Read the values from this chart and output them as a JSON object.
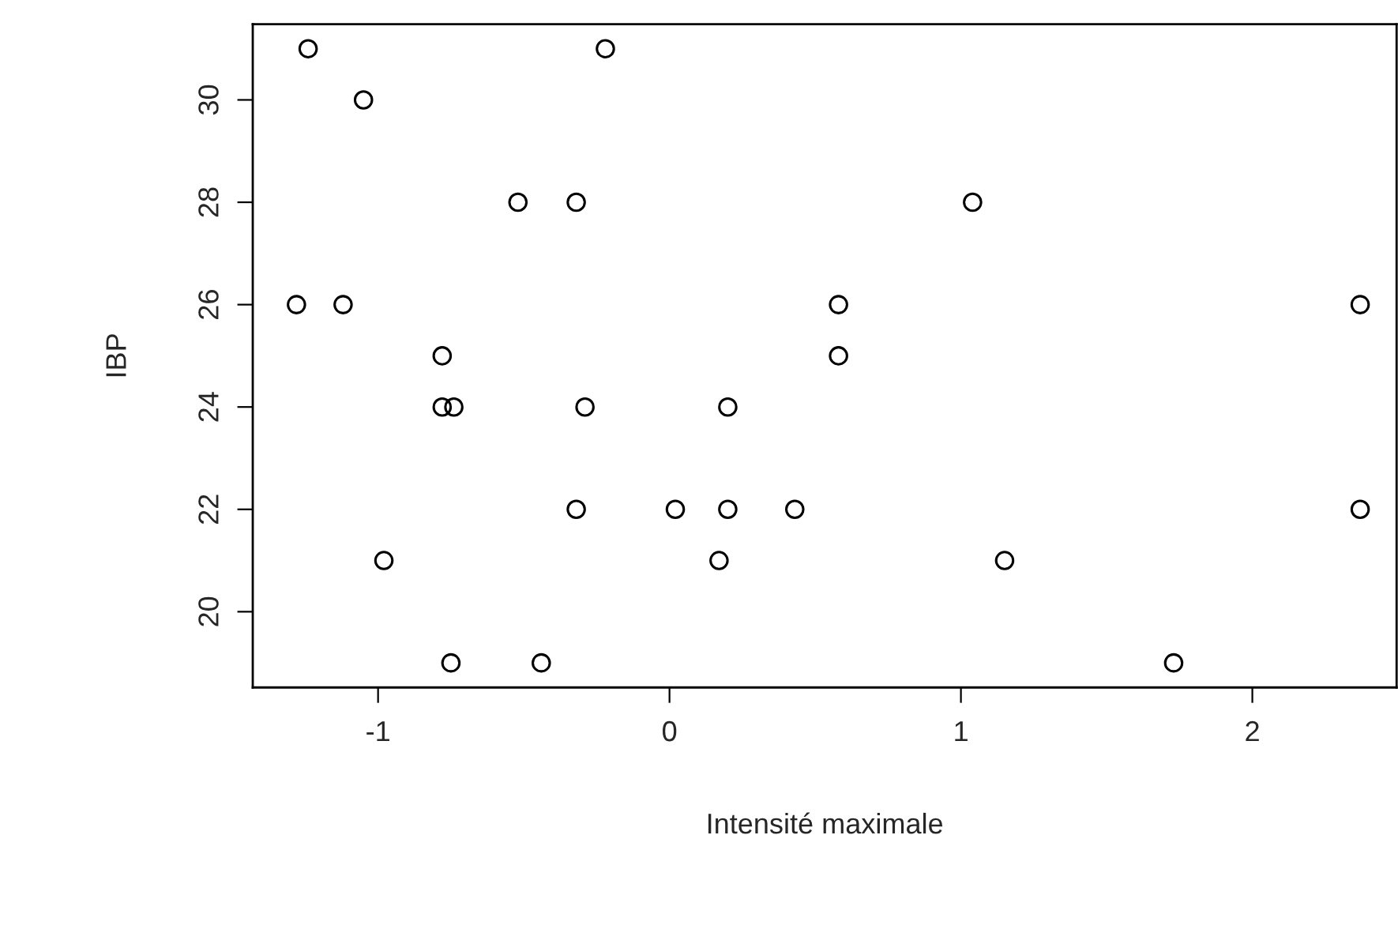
{
  "chart_data": {
    "type": "scatter",
    "xlabel": "Intensité maximale",
    "ylabel": "IBP",
    "x": [
      -1.24,
      -0.22,
      -1.05,
      -0.52,
      -0.32,
      1.04,
      -1.28,
      -1.12,
      0.58,
      2.37,
      -0.78,
      0.58,
      -0.78,
      -0.74,
      -0.29,
      0.2,
      -0.32,
      0.02,
      0.2,
      0.43,
      2.37,
      -0.98,
      0.17,
      1.15,
      -0.75,
      -0.44,
      1.73
    ],
    "values": [
      31,
      31,
      30,
      28,
      28,
      28,
      26,
      26,
      26,
      26,
      25,
      25,
      24,
      24,
      24,
      24,
      22,
      22,
      22,
      22,
      22,
      21,
      21,
      21,
      19,
      19,
      19
    ],
    "color": "#000000",
    "marker": "circle",
    "xlim": [
      -1.43,
      2.495
    ],
    "ylim": [
      18.52,
      31.48
    ],
    "xticks": [
      -1,
      0,
      1,
      2
    ],
    "yticks": [
      20,
      22,
      24,
      26,
      28,
      30
    ],
    "grid": false
  }
}
